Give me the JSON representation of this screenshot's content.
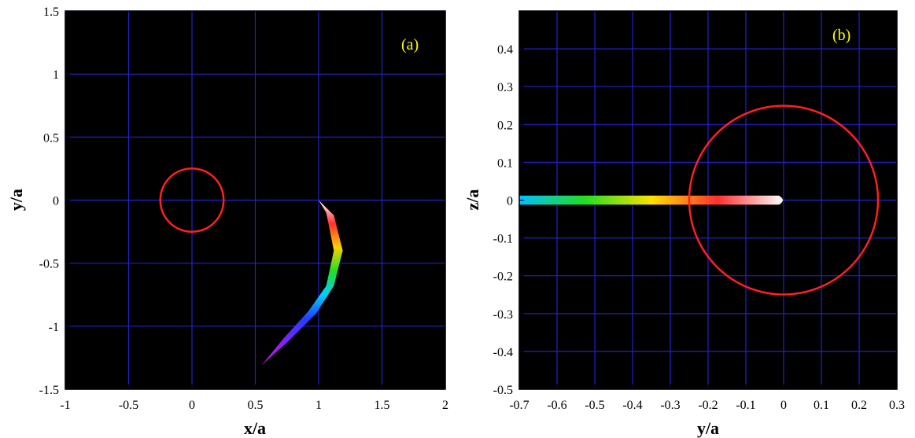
{
  "chart_data": [
    {
      "type": "scatter",
      "panel_label": "(a)",
      "xlabel": "x/a",
      "ylabel": "y/a",
      "xlim": [
        -1,
        2
      ],
      "ylim": [
        -1.5,
        1.5
      ],
      "xticks": [
        -1,
        -0.5,
        0,
        0.5,
        1,
        1.5,
        2
      ],
      "yticks": [
        -1.5,
        -1,
        -0.5,
        0,
        0.5,
        1,
        1.5
      ],
      "xtick_labels": [
        "-1",
        "-0.5",
        "0",
        "0.5",
        "1",
        "1.5",
        "2"
      ],
      "ytick_labels": [
        "-1.5",
        "-1",
        "-0.5",
        "0",
        "0.5",
        "1",
        "1.5"
      ],
      "background": "#000000",
      "grid": true,
      "grid_color": "#2222cc",
      "circle": {
        "center": [
          0,
          0
        ],
        "radius": 0.25,
        "color": "#ff2020"
      },
      "stream": {
        "colors": [
          "#ffffff",
          "#ff3030",
          "#ffd000",
          "#20e020",
          "#00d0ff",
          "#2040ff",
          "#8020ff",
          "#c020c0"
        ],
        "outer_edge": [
          [
            1.0,
            0.0
          ],
          [
            1.12,
            -0.12
          ],
          [
            1.19,
            -0.4
          ],
          [
            1.12,
            -0.68
          ],
          [
            0.98,
            -0.9
          ],
          [
            0.76,
            -1.12
          ],
          [
            0.55,
            -1.31
          ]
        ],
        "inner_edge": [
          [
            1.0,
            0.0
          ],
          [
            1.06,
            -0.1
          ],
          [
            1.12,
            -0.4
          ],
          [
            1.06,
            -0.68
          ],
          [
            0.92,
            -0.88
          ],
          [
            0.72,
            -1.1
          ],
          [
            0.55,
            -1.31
          ]
        ]
      }
    },
    {
      "type": "scatter",
      "panel_label": "(b)",
      "xlabel": "y/a",
      "ylabel": "z/a",
      "xlim": [
        -0.7,
        0.3
      ],
      "ylim": [
        -0.5,
        0.5
      ],
      "xticks": [
        -0.7,
        -0.6,
        -0.5,
        -0.4,
        -0.3,
        -0.2,
        -0.1,
        0,
        0.1,
        0.2,
        0.3
      ],
      "yticks": [
        -0.5,
        -0.4,
        -0.3,
        -0.2,
        -0.1,
        0,
        0.1,
        0.2,
        0.3,
        0.4
      ],
      "xtick_labels": [
        "-0.7",
        "-0.6",
        "-0.5",
        "-0.4",
        "-0.3",
        "-0.2",
        "-0.1",
        "0",
        "0.1",
        "0.2",
        "0.3"
      ],
      "ytick_labels": [
        "-0.5",
        "-0.4",
        "-0.3",
        "-0.2",
        "-0.1",
        "0",
        "0.1",
        "0.2",
        "0.3",
        "0.4"
      ],
      "background": "#000000",
      "grid": true,
      "grid_color": "#2222cc",
      "circle": {
        "center": [
          0,
          0
        ],
        "radius": 0.25,
        "color": "#ff2020"
      },
      "stream": {
        "colors": [
          "#00c0ff",
          "#20e020",
          "#ffe000",
          "#ff3030",
          "#ffffff"
        ],
        "x_range": [
          -0.7,
          0.0
        ],
        "half_width": 0.012
      }
    }
  ]
}
